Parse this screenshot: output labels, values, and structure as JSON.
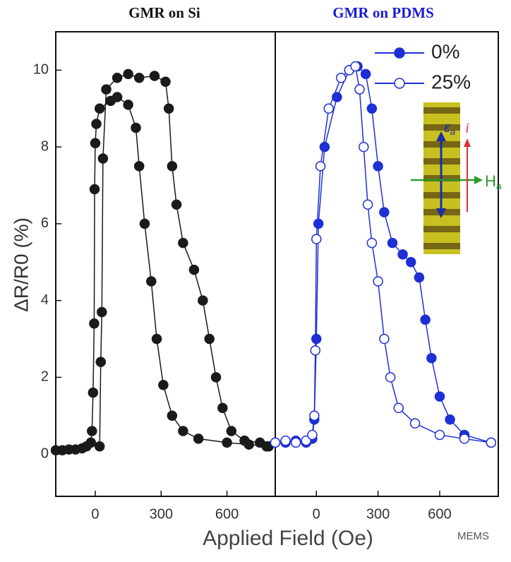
{
  "chart_data": [
    {
      "type": "scatter-line",
      "title": "GMR on Si",
      "title_color": "#111111",
      "ylabel": "ΔR/R0 (%)",
      "xlabel": "Applied Field (Oe)",
      "xlim": [
        -180,
        820
      ],
      "ylim": [
        -1.1,
        11
      ],
      "xticks": [
        0,
        300,
        600
      ],
      "yticks": [
        0,
        2,
        4,
        6,
        8,
        10
      ],
      "series": [
        {
          "color": "#1a1a1a",
          "filled": true,
          "x": [
            -180,
            -150,
            -120,
            -90,
            -60,
            -40,
            -20,
            -15,
            -10,
            -5,
            -3,
            0,
            5,
            20,
            70,
            100,
            150,
            185,
            200,
            225,
            255,
            280,
            310,
            350,
            400,
            470,
            600,
            700,
            780
          ],
          "values": [
            0.1,
            0.1,
            0.12,
            0.12,
            0.15,
            0.2,
            0.3,
            0.6,
            1.6,
            3.4,
            6.9,
            8.1,
            8.6,
            9.0,
            9.2,
            9.3,
            9.1,
            8.5,
            7.5,
            6.0,
            4.5,
            3.0,
            1.8,
            1.0,
            0.6,
            0.4,
            0.3,
            0.25,
            0.2
          ]
        },
        {
          "color": "#1a1a1a",
          "filled": true,
          "x": [
            20,
            25,
            30,
            35,
            50,
            100,
            150,
            200,
            270,
            320,
            335,
            350,
            370,
            400,
            450,
            490,
            520,
            550,
            580,
            620,
            680,
            750,
            790
          ],
          "values": [
            0.2,
            2.4,
            3.7,
            7.7,
            9.5,
            9.8,
            9.9,
            9.8,
            9.85,
            9.7,
            9.0,
            7.5,
            6.5,
            5.5,
            4.8,
            4.0,
            3.0,
            2.0,
            1.2,
            0.6,
            0.35,
            0.3,
            0.2
          ]
        }
      ]
    },
    {
      "type": "scatter-line",
      "title": "GMR on PDMS",
      "title_color": "#1a1adb",
      "xlim": [
        -200,
        885
      ],
      "ylim": [
        -1.1,
        11
      ],
      "xticks": [
        0,
        300,
        600
      ],
      "legend": "top-right",
      "series": [
        {
          "name": "0%",
          "color": "#1f2fd6",
          "filled": true,
          "x": [
            -200,
            -150,
            -100,
            -50,
            -20,
            -10,
            0,
            10,
            40,
            100,
            160,
            200,
            240,
            270,
            300,
            330,
            370,
            420,
            460,
            500,
            530,
            560,
            600,
            650,
            720,
            850
          ],
          "values": [
            0.3,
            0.3,
            0.35,
            0.3,
            0.4,
            0.9,
            3.0,
            6.0,
            8.0,
            9.3,
            10.0,
            10.1,
            9.9,
            9.0,
            7.5,
            6.3,
            5.5,
            5.2,
            5.0,
            4.6,
            3.5,
            2.5,
            1.5,
            0.9,
            0.5,
            0.3
          ]
        },
        {
          "name": "25%",
          "color": "#1f2fd6",
          "filled": false,
          "x": [
            -200,
            -150,
            -100,
            -50,
            -20,
            -10,
            -5,
            0,
            20,
            60,
            120,
            160,
            190,
            210,
            230,
            250,
            270,
            300,
            330,
            360,
            400,
            480,
            600,
            720,
            850
          ],
          "values": [
            0.3,
            0.35,
            0.3,
            0.35,
            0.5,
            1.0,
            2.7,
            5.6,
            7.5,
            9.0,
            9.8,
            10.0,
            10.1,
            9.5,
            8.0,
            6.5,
            5.5,
            4.5,
            3.0,
            2.0,
            1.2,
            0.8,
            0.5,
            0.4,
            0.3
          ]
        }
      ],
      "inset": {
        "strain_label": "ε",
        "strain_sub": "a",
        "current_label": "i",
        "field_label": "H",
        "field_sub": "a"
      }
    }
  ],
  "watermark": "MEMS"
}
